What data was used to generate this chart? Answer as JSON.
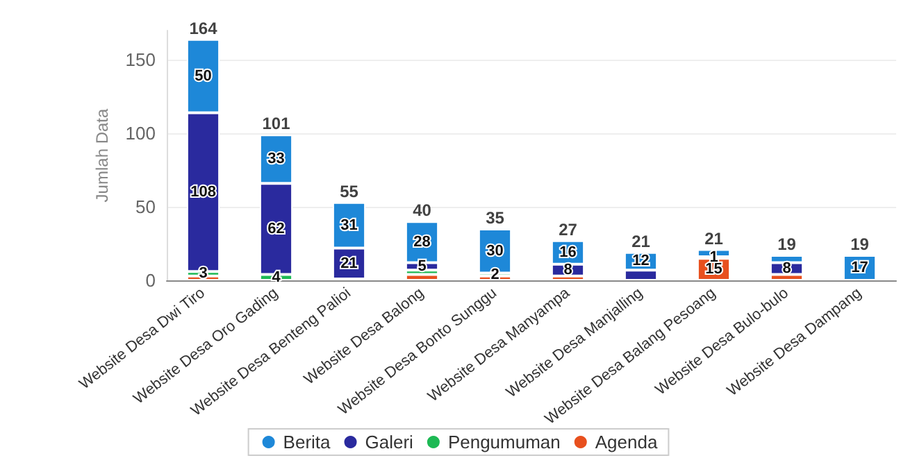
{
  "chart_data": {
    "type": "bar",
    "stacked": true,
    "ylabel": "Jumlah Data",
    "categories": [
      "Website Desa Dwi Tiro",
      "Website Desa Oro Gading",
      "Website Desa Benteng Palioi",
      "Website Desa Balong",
      "Website Desa Bonto Sunggu",
      "Website Desa Manyampa",
      "Website Desa Manjalling",
      "Website Desa Balang Pesoang",
      "Website Desa Bulo-bulo",
      "Website Desa Dampang"
    ],
    "series": [
      {
        "name": "Agenda",
        "color": "#e8501e",
        "values": [
          3,
          null,
          1,
          4,
          3,
          3,
          null,
          15,
          4,
          null
        ],
        "value_labels": [
          null,
          null,
          null,
          null,
          null,
          null,
          null,
          "15",
          null,
          null
        ]
      },
      {
        "name": "Pengumuman",
        "color": "#1db954",
        "values": [
          3,
          4,
          null,
          3,
          2,
          null,
          null,
          1,
          null,
          null
        ],
        "value_labels": [
          "3",
          "4",
          null,
          null,
          "2",
          null,
          null,
          "1",
          null,
          null
        ]
      },
      {
        "name": "Galeri",
        "color": "#2a2a9e",
        "values": [
          108,
          62,
          21,
          5,
          null,
          8,
          7,
          null,
          8,
          null
        ],
        "value_labels": [
          "108",
          "62",
          "21",
          "5",
          null,
          "8",
          null,
          null,
          "8",
          null
        ]
      },
      {
        "name": "Berita",
        "color": "#1e88d8",
        "values": [
          50,
          33,
          31,
          28,
          30,
          16,
          12,
          5,
          5,
          17
        ],
        "value_labels": [
          "50",
          "33",
          "31",
          "28",
          "30",
          "16",
          "12",
          null,
          null,
          "17"
        ]
      }
    ],
    "totals": [
      "164",
      "101",
      "55",
      "40",
      "35",
      "27",
      "21",
      "21",
      "19",
      "19"
    ],
    "ylim": [
      0,
      170
    ],
    "yticks": [
      0,
      50,
      100,
      150
    ],
    "grid": "y",
    "legend": "bottom"
  }
}
